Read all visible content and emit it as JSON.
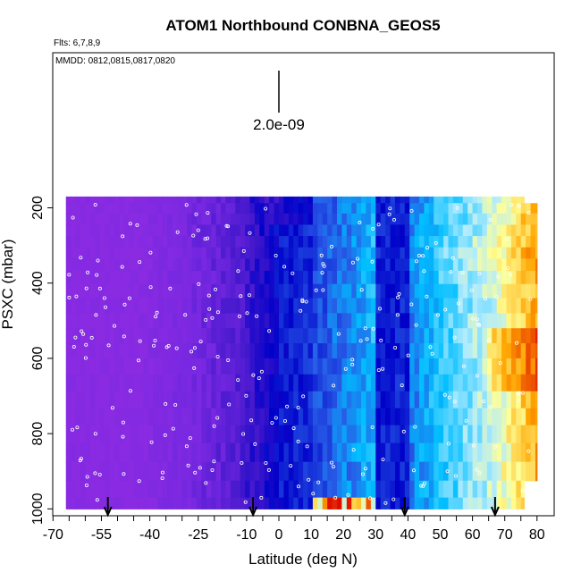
{
  "chart_data": {
    "type": "heatmap",
    "title": "ATOM1 Northbound CONBNA_GEOS5",
    "flights_text": "Flts: 6,7,8,9",
    "dates_text": "MMDD: 0812,0815,0817,0820",
    "xlabel": "Latitude (deg N)",
    "ylabel": "PSXC (mbar)",
    "x_ticks": [
      -70,
      -55,
      -40,
      -25,
      -10,
      0,
      10,
      20,
      30,
      40,
      50,
      60,
      70,
      80
    ],
    "x_tick_labels": [
      "-70",
      "-55",
      "-40",
      "-25",
      "-10",
      "0",
      "10",
      "20",
      "30",
      "40",
      "50",
      "60",
      "70",
      "80"
    ],
    "y_ticks": [
      200,
      400,
      600,
      800,
      1000
    ],
    "y_tick_labels": [
      "200",
      "400",
      "600",
      "800",
      "1000"
    ],
    "y_reversed": true,
    "scale_bar_label": "2.0e-09",
    "scale_bar_at_latitude": 0,
    "flight_date_marker_latitudes": [
      -53,
      -8,
      39,
      67
    ],
    "latitude_range_covered": [
      -66,
      80
    ],
    "pressure_range_covered": [
      170,
      1000
    ],
    "pressure_levels": [
      175,
      200,
      230,
      260,
      290,
      320,
      350,
      385,
      420,
      460,
      500,
      540,
      580,
      620,
      665,
      710,
      755,
      800,
      850,
      900,
      950,
      990
    ],
    "gradient_description": "cell colors run from purple (low) in the south through blue and cyan to yellow, orange and red (high) in the north",
    "colors": {
      "low": "#8a2be2",
      "mid_low": "#0000cd",
      "mid": "#00bfff",
      "mid_high": "#ffff80",
      "high": "#ff8c00",
      "max": "#e00000",
      "points": "#ffffff"
    }
  }
}
